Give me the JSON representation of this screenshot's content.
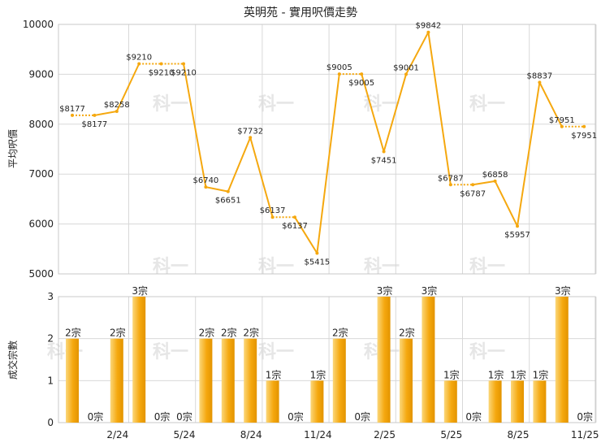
{
  "chart_data": [
    {
      "type": "line",
      "title": "英明苑 - 實用呎價走勢",
      "ylabel": "平均呎價",
      "ylim": [
        5000,
        10000
      ],
      "yticks": [
        5000,
        6000,
        7000,
        8000,
        9000,
        10000
      ],
      "color": "#f5a80f",
      "grid": true,
      "points": [
        {
          "i": 0,
          "value": 8177,
          "label": "$8177"
        },
        {
          "i": 1,
          "value": 8177,
          "label": "$8177"
        },
        {
          "i": 2,
          "value": 8258,
          "label": "$8258"
        },
        {
          "i": 3,
          "value": 9210,
          "label": "$9210"
        },
        {
          "i": 4,
          "value": 9210,
          "label": "$9210"
        },
        {
          "i": 5,
          "value": 9210,
          "label": "$9210"
        },
        {
          "i": 6,
          "value": 6740,
          "label": "$6740"
        },
        {
          "i": 7,
          "value": 6651,
          "label": "$6651"
        },
        {
          "i": 8,
          "value": 7732,
          "label": "$7732"
        },
        {
          "i": 9,
          "value": 6137,
          "label": "$6137"
        },
        {
          "i": 10,
          "value": 6137,
          "label": "$6137"
        },
        {
          "i": 11,
          "value": 5415,
          "label": "$5415"
        },
        {
          "i": 12,
          "value": 9005,
          "label": "$9005"
        },
        {
          "i": 13,
          "value": 9005,
          "label": "$9005"
        },
        {
          "i": 14,
          "value": 7451,
          "label": "$7451"
        },
        {
          "i": 15,
          "value": 9001,
          "label": "$9001"
        },
        {
          "i": 16,
          "value": 9842,
          "label": "$9842"
        },
        {
          "i": 17,
          "value": 6787,
          "label": "$6787"
        },
        {
          "i": 18,
          "value": 6787,
          "label": "$6787"
        },
        {
          "i": 19,
          "value": 6858,
          "label": "$6858"
        },
        {
          "i": 20,
          "value": 5957,
          "label": "$5957"
        },
        {
          "i": 21,
          "value": 8837,
          "label": "$8837"
        },
        {
          "i": 22,
          "value": 7951,
          "label": "$7951"
        },
        {
          "i": 23,
          "value": 7951,
          "label": "$7951"
        }
      ]
    },
    {
      "type": "bar",
      "ylabel": "成交宗數",
      "ylim": [
        0,
        3
      ],
      "yticks": [
        0,
        1,
        2,
        3
      ],
      "color": "#f5a80f",
      "x_ticks": [
        "2/24",
        "5/24",
        "8/24",
        "11/24",
        "2/25",
        "5/25",
        "8/25",
        "11/25"
      ],
      "bars": [
        {
          "value": 2,
          "label": "2宗"
        },
        {
          "value": 0,
          "label": "0宗"
        },
        {
          "value": 2,
          "label": "2宗"
        },
        {
          "value": 3,
          "label": "3宗"
        },
        {
          "value": 0,
          "label": "0宗"
        },
        {
          "value": 0,
          "label": "0宗"
        },
        {
          "value": 2,
          "label": "2宗"
        },
        {
          "value": 2,
          "label": "2宗"
        },
        {
          "value": 2,
          "label": "2宗"
        },
        {
          "value": 1,
          "label": "1宗"
        },
        {
          "value": 0,
          "label": "0宗"
        },
        {
          "value": 1,
          "label": "1宗"
        },
        {
          "value": 2,
          "label": "2宗"
        },
        {
          "value": 0,
          "label": "0宗"
        },
        {
          "value": 3,
          "label": "3宗"
        },
        {
          "value": 2,
          "label": "2宗"
        },
        {
          "value": 3,
          "label": "3宗"
        },
        {
          "value": 1,
          "label": "1宗"
        },
        {
          "value": 0,
          "label": "0宗"
        },
        {
          "value": 1,
          "label": "1宗"
        },
        {
          "value": 1,
          "label": "1宗"
        },
        {
          "value": 1,
          "label": "1宗"
        },
        {
          "value": 3,
          "label": "3宗"
        },
        {
          "value": 0,
          "label": "0宗"
        }
      ]
    }
  ]
}
